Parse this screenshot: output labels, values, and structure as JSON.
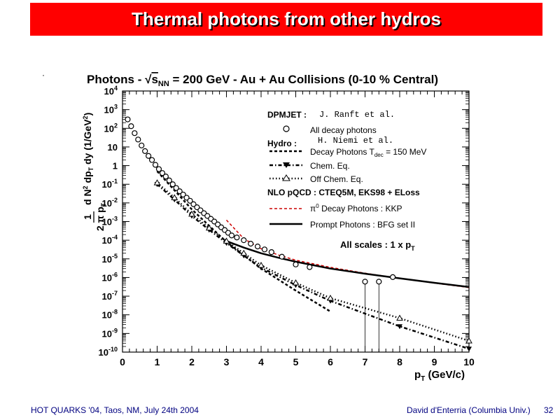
{
  "slide": {
    "title": "Thermal photons from other hydros",
    "footer_left": "HOT QUARKS '04, Taos, NM, July 24th 2004",
    "footer_right": "David d'Enterria (Columbia Univ.)",
    "page_number": "32",
    "colors": {
      "title_bg": "#ff0000",
      "title_text": "#ffffff",
      "footer_text": "#000080",
      "nlo_decay": "#cc0000"
    }
  },
  "chart_data": {
    "type": "scatter",
    "title": "Photons - √sNN = 200 GeV - Au + Au Collisions (0-10 % Central)",
    "title_parts": {
      "pre": "Photons - ",
      "s": "s",
      "nn": "NN",
      "post": " = 200 GeV - Au + Au Collisions (0-10 % Central)"
    },
    "xlabel": "pT (GeV/c)",
    "xlabel_parts": {
      "p": "p",
      "t": "T",
      "rest": " (GeV/c)"
    },
    "ylabel": "1/(2π pT) d²N/dpT dy (1/GeV²)",
    "ylabel_parts": {
      "one": "1",
      "den": "2 π p",
      "den_sub": "T",
      "num": "d N",
      "num_sup": "2",
      "rest": " dp",
      "rest_sub": "T",
      "dy": " dy",
      "unit": " (1/GeV",
      "unit_sup": "2",
      "unit_close": ")"
    },
    "xlim": [
      0,
      10
    ],
    "ylim_exponents": [
      -10,
      4
    ],
    "y_scale": "log",
    "x_ticks": [
      "0",
      "1",
      "2",
      "3",
      "4",
      "5",
      "6",
      "7",
      "8",
      "9",
      "10"
    ],
    "y_ticks": [
      {
        "e": 4,
        "base": "10",
        "sup": "4"
      },
      {
        "e": 3,
        "base": "10",
        "sup": "3"
      },
      {
        "e": 2,
        "base": "10",
        "sup": "2"
      },
      {
        "e": 1,
        "base": "10",
        "sup": ""
      },
      {
        "e": 0,
        "base": "1",
        "sup": ""
      },
      {
        "e": -1,
        "base": "10",
        "sup": "-1"
      },
      {
        "e": -2,
        "base": "10",
        "sup": "-2"
      },
      {
        "e": -3,
        "base": "10",
        "sup": "-3"
      },
      {
        "e": -4,
        "base": "10",
        "sup": "-4"
      },
      {
        "e": -5,
        "base": "10",
        "sup": "-5"
      },
      {
        "e": -6,
        "base": "10",
        "sup": "-6"
      },
      {
        "e": -7,
        "base": "10",
        "sup": "-7"
      },
      {
        "e": -8,
        "base": "10",
        "sup": "-8"
      },
      {
        "e": -9,
        "base": "10",
        "sup": "-9"
      },
      {
        "e": -10,
        "base": "10",
        "sup": "-10"
      }
    ],
    "legend": {
      "dpmjet_header": "DPMJET :",
      "dpmjet_author": "J. Ranft et al.",
      "all_decay": "All decay photons",
      "hydro_header": "Hydro :",
      "hydro_author": "H. Niemi et al.",
      "decay_photons_pre": "Decay Photons  T",
      "decay_photons_sub": "dec",
      "decay_photons_post": " = 150 MeV",
      "chem_eq": "Chem. Eq.",
      "off_chem_eq": "Off Chem. Eq.",
      "nlo_header": "NLO pQCD : CTEQ5M, EKS98 + ELoss",
      "pi0_pre": "π",
      "pi0_sup": "0",
      "pi0_post": " Decay Photons : KKP",
      "prompt": "Prompt Photons : BFG set II",
      "scales_pre": "All scales : 1 x p",
      "scales_sub": "T"
    },
    "series": [
      {
        "name": "All decay photons",
        "style": "open-circle",
        "x": [
          0.15,
          0.25,
          0.35,
          0.45,
          0.55,
          0.65,
          0.75,
          0.85,
          0.95,
          1.05,
          1.15,
          1.25,
          1.35,
          1.45,
          1.55,
          1.65,
          1.75,
          1.85,
          1.95,
          2.05,
          2.15,
          2.25,
          2.35,
          2.45,
          2.55,
          2.65,
          2.75,
          2.85,
          2.95,
          3.05,
          3.15,
          3.3,
          3.5,
          3.7,
          3.9,
          4.1,
          4.3,
          4.6,
          5.0,
          5.4,
          7.0,
          7.4,
          7.8
        ],
        "y": [
          300,
          130,
          55,
          25,
          12,
          6,
          3.3,
          2,
          1.1,
          0.65,
          0.4,
          0.26,
          0.16,
          0.1,
          0.063,
          0.042,
          0.028,
          0.019,
          0.013,
          0.0085,
          0.0058,
          0.004,
          0.0028,
          0.002,
          0.0014,
          0.001,
          0.0007,
          0.00049,
          0.00035,
          0.00025,
          0.00018,
          0.00014,
          0.0001,
          6.5e-05,
          4.6e-05,
          3.2e-05,
          2.3e-05,
          1.3e-05,
          5e-06,
          3.6e-06,
          6e-07,
          6e-07,
          1.05e-06
        ]
      },
      {
        "name": "Chem. Eq.",
        "style": "filled-triangle-down",
        "x": [
          1.0,
          1.5,
          2.0,
          2.5,
          3.0,
          3.5,
          4.0,
          5.0,
          6.0,
          8.0,
          10.0
        ],
        "y": [
          0.1,
          0.015,
          0.002,
          0.00036,
          7e-05,
          1.5e-05,
          3.4e-06,
          3.9e-07,
          5.6e-08,
          2.4e-09,
          1.5e-10
        ]
      },
      {
        "name": "Off Chem. Eq.",
        "style": "open-triangle-up",
        "x": [
          1.0,
          1.5,
          2.0,
          2.5,
          3.0,
          3.5,
          4.0,
          5.0,
          6.0,
          8.0,
          10.0
        ],
        "y": [
          0.12,
          0.019,
          0.0025,
          0.00045,
          9e-05,
          2e-05,
          4.5e-06,
          5.2e-07,
          7.8e-08,
          6.6e-09,
          4e-10
        ]
      },
      {
        "name": "Decay Photons Tdec = 150 MeV",
        "style": "dashed",
        "x": [
          1.0,
          2.0,
          3.0,
          4.0,
          5.0,
          6.0
        ],
        "y": [
          0.5,
          0.0045,
          8e-05,
          3e-06,
          2e-07,
          1.5e-08
        ]
      },
      {
        "name": "π0 Decay Photons : KKP",
        "style": "red-dashed",
        "x": [
          3.0,
          3.5,
          4.0,
          4.5,
          5.0,
          6.0,
          7.0,
          8.0,
          9.0,
          10.0
        ],
        "y": [
          0.0012,
          0.00012,
          3.5e-05,
          1.6e-05,
          8.5e-06,
          3.5e-06,
          1.7e-06,
          9e-07,
          5e-07,
          2.9e-07
        ]
      },
      {
        "name": "Prompt Photons : BFG set II",
        "style": "solid",
        "x": [
          3.0,
          3.5,
          4.0,
          4.5,
          5.0,
          6.0,
          7.0,
          8.0,
          9.0,
          10.0
        ],
        "y": [
          9e-05,
          4e-05,
          2e-05,
          1.15e-05,
          7e-06,
          3e-06,
          1.6e-06,
          9e-07,
          5.2e-07,
          3.1e-07
        ]
      }
    ],
    "error_bars_x": [
      7.0,
      7.4
    ],
    "grid": false,
    "legend_position": "top-right"
  }
}
